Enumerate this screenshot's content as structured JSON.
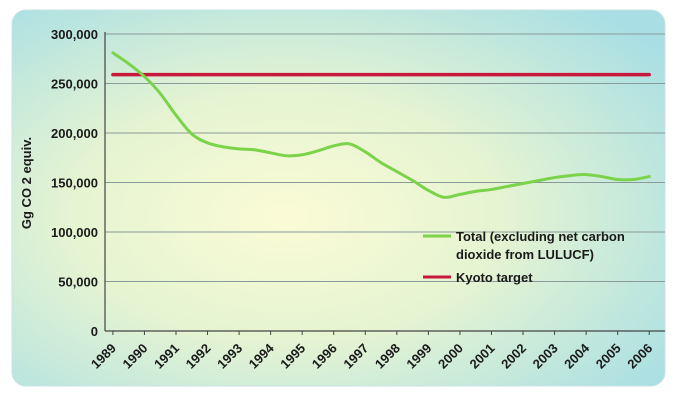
{
  "chart_data": {
    "type": "line",
    "ylabel": "Gg CO 2 equiv.",
    "ylim": [
      0,
      300000
    ],
    "yticks": [
      0,
      50000,
      100000,
      150000,
      200000,
      250000,
      300000
    ],
    "ytick_labels": [
      "0",
      "50,000",
      "100,000",
      "150,000",
      "200,000",
      "250,000",
      "300,000"
    ],
    "categories": [
      "1989",
      "1990",
      "1991",
      "1992",
      "1993",
      "1994",
      "1995",
      "1996",
      "1997",
      "1998",
      "1999",
      "2000",
      "2001",
      "2002",
      "2003",
      "2004",
      "2005",
      "2006"
    ],
    "grid": true,
    "legend_position": "lower-right",
    "series": [
      {
        "name": "Total (excluding net carbon dioxide from LULUCF)",
        "legend_lines": [
          "Total (excluding net carbon",
          "dioxide from LULUCF)"
        ],
        "color": "#7bd34a",
        "x": [
          1989.0,
          1989.5,
          1990.0,
          1990.5,
          1991.0,
          1991.5,
          1992.0,
          1992.5,
          1993.0,
          1993.5,
          1994.0,
          1994.5,
          1995.0,
          1995.5,
          1996.0,
          1996.5,
          1997.0,
          1997.5,
          1998.0,
          1998.5,
          1999.0,
          1999.5,
          2000.0,
          2000.5,
          2001.0,
          2001.5,
          2002.0,
          2002.5,
          2003.0,
          2003.5,
          2004.0,
          2004.5,
          2005.0,
          2005.5,
          2006.0
        ],
        "values": [
          281000,
          270000,
          257000,
          240000,
          218000,
          199000,
          190000,
          186000,
          184000,
          183000,
          180000,
          177000,
          178000,
          182000,
          187000,
          189000,
          181000,
          170000,
          161000,
          152000,
          142000,
          135000,
          138000,
          141000,
          143000,
          146000,
          149000,
          152000,
          155000,
          157000,
          158000,
          156000,
          153000,
          153000,
          156000
        ]
      },
      {
        "name": "Kyoto target",
        "legend_lines": [
          "Kyoto target"
        ],
        "color": "#c8193c",
        "x": [
          1989.0,
          2006.0
        ],
        "values": [
          259000,
          259000
        ]
      }
    ]
  }
}
